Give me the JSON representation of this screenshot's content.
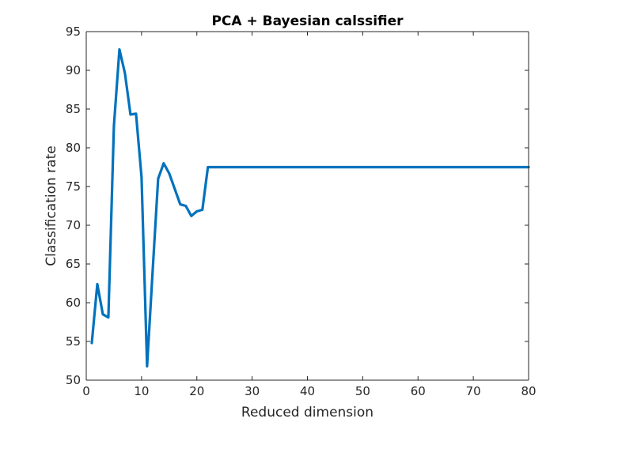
{
  "chart_data": {
    "type": "line",
    "title": "PCA + Bayesian calssifier",
    "xlabel": "Reduced dimension",
    "ylabel": "Classification rate",
    "xlim": [
      0,
      80
    ],
    "ylim": [
      50,
      95
    ],
    "xticks": [
      0,
      10,
      20,
      30,
      40,
      50,
      60,
      70,
      80
    ],
    "yticks": [
      50,
      55,
      60,
      65,
      70,
      75,
      80,
      85,
      90,
      95
    ],
    "grid": false,
    "legend": "none",
    "series": [
      {
        "color": "#0072BD",
        "x": [
          1,
          2,
          3,
          4,
          5,
          6,
          7,
          8,
          9,
          10,
          11,
          12,
          13,
          14,
          15,
          16,
          17,
          18,
          19,
          20,
          21,
          22,
          23,
          24,
          25,
          26,
          27,
          28,
          29,
          30,
          31,
          32,
          33,
          34,
          35,
          36,
          37,
          38,
          39,
          40,
          41,
          42,
          43,
          44,
          45,
          46,
          47,
          48,
          49,
          50,
          51,
          52,
          53,
          54,
          55,
          56,
          57,
          58,
          59,
          60,
          61,
          62,
          63,
          64,
          65,
          66,
          67,
          68,
          69,
          70,
          71,
          72,
          73,
          74,
          75,
          76,
          77,
          78,
          79,
          80
        ],
        "y": [
          54.8,
          62.4,
          58.5,
          58.1,
          82.8,
          92.7,
          89.6,
          84.3,
          84.4,
          76.2,
          51.8,
          64.0,
          76.0,
          78.0,
          76.7,
          74.7,
          72.7,
          72.5,
          71.2,
          71.8,
          72.0,
          77.5,
          77.5,
          77.5,
          77.5,
          77.5,
          77.5,
          77.5,
          77.5,
          77.5,
          77.5,
          77.5,
          77.5,
          77.5,
          77.5,
          77.5,
          77.5,
          77.5,
          77.5,
          77.5,
          77.5,
          77.5,
          77.5,
          77.5,
          77.5,
          77.5,
          77.5,
          77.5,
          77.5,
          77.5,
          77.5,
          77.5,
          77.5,
          77.5,
          77.5,
          77.5,
          77.5,
          77.5,
          77.5,
          77.5,
          77.5,
          77.5,
          77.5,
          77.5,
          77.5,
          77.5,
          77.5,
          77.5,
          77.5,
          77.5,
          77.5,
          77.5,
          77.5,
          77.5,
          77.5,
          77.5,
          77.5,
          77.5,
          77.5,
          77.5
        ]
      }
    ]
  }
}
